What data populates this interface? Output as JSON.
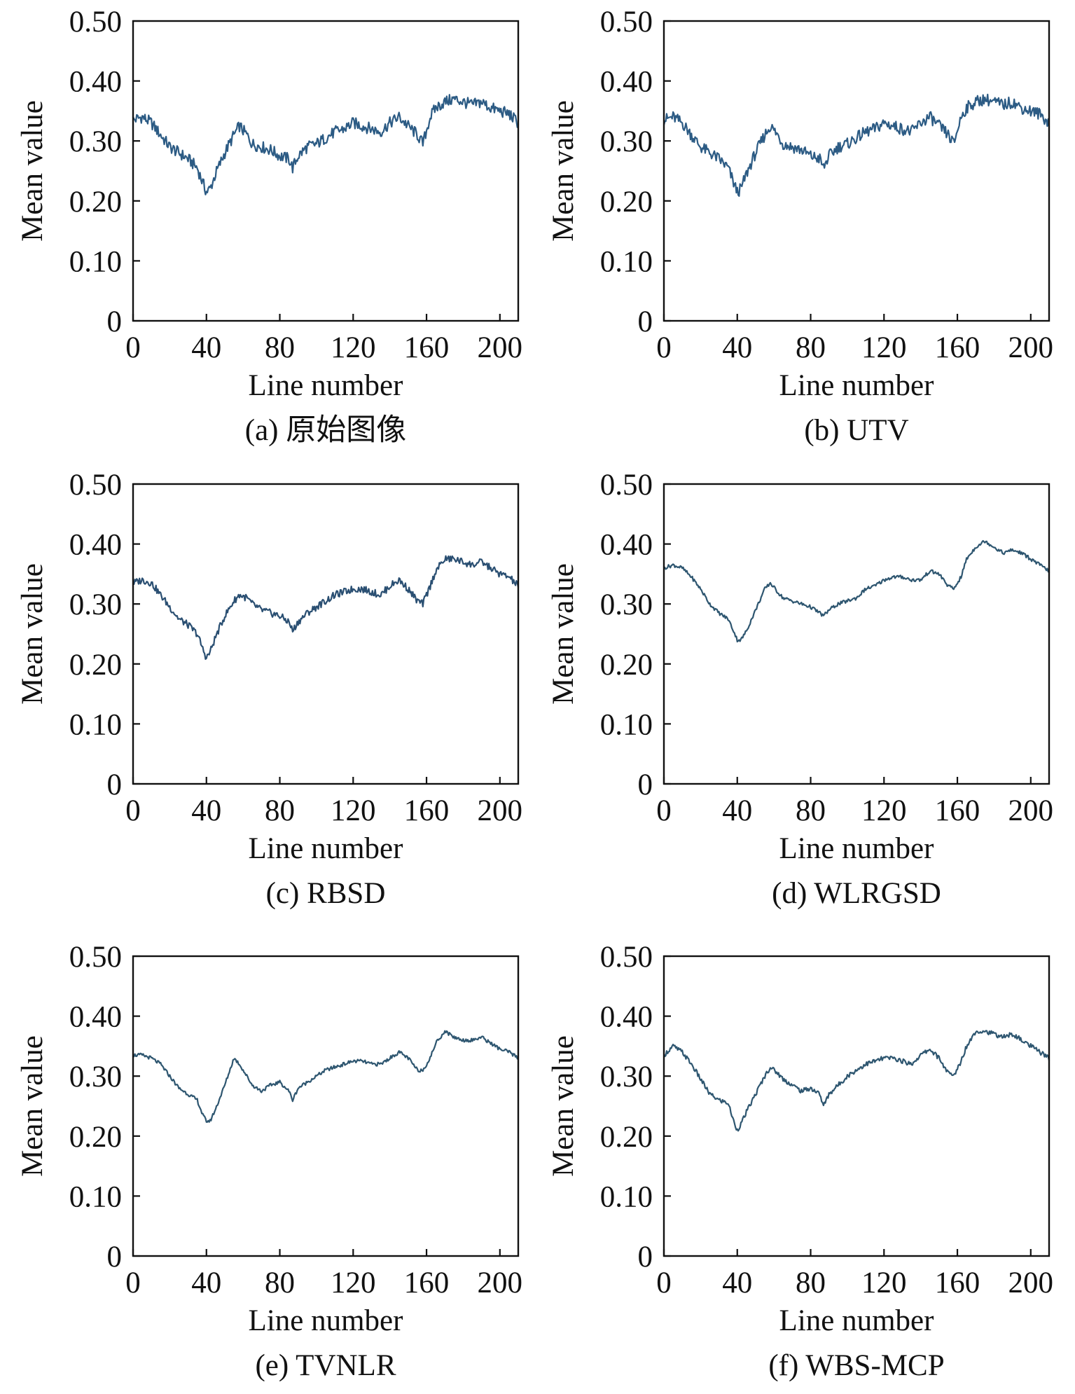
{
  "figure": {
    "panel_count": 6
  },
  "chart_data": [
    {
      "type": "line",
      "caption": "(a) 原始图像",
      "xlabel": "Line number",
      "ylabel": "Mean value",
      "xlim": [
        0,
        210
      ],
      "ylim": [
        0,
        0.5
      ],
      "x_ticks": [
        0,
        40,
        80,
        120,
        160,
        200
      ],
      "x_tick_labels": [
        "0",
        "40",
        "80",
        "120",
        "160",
        "200"
      ],
      "y_ticks": [
        0,
        0.1,
        0.2,
        0.3,
        0.4,
        0.5
      ],
      "y_tick_labels": [
        "0",
        "0.10",
        "0.20",
        "0.30",
        "0.40",
        "0.50"
      ],
      "grid": false,
      "color": "#2c5b84",
      "series": [
        {
          "x": [
            0,
            5,
            10,
            15,
            20,
            25,
            30,
            35,
            38,
            40,
            42,
            45,
            50,
            55,
            58,
            62,
            65,
            70,
            75,
            80,
            85,
            87,
            90,
            95,
            100,
            105,
            110,
            115,
            120,
            125,
            130,
            135,
            140,
            145,
            150,
            155,
            158,
            162,
            165,
            170,
            175,
            180,
            185,
            190,
            195,
            200,
            205,
            210
          ],
          "y": [
            0.335,
            0.34,
            0.33,
            0.31,
            0.29,
            0.28,
            0.27,
            0.255,
            0.23,
            0.215,
            0.22,
            0.245,
            0.28,
            0.31,
            0.325,
            0.31,
            0.295,
            0.29,
            0.285,
            0.275,
            0.27,
            0.255,
            0.275,
            0.29,
            0.295,
            0.305,
            0.315,
            0.32,
            0.33,
            0.325,
            0.32,
            0.315,
            0.33,
            0.34,
            0.325,
            0.31,
            0.295,
            0.34,
            0.355,
            0.365,
            0.37,
            0.365,
            0.36,
            0.365,
            0.355,
            0.35,
            0.345,
            0.33
          ]
        }
      ]
    },
    {
      "type": "line",
      "caption": "(b) UTV",
      "xlabel": "Line number",
      "ylabel": "Mean value",
      "xlim": [
        0,
        210
      ],
      "ylim": [
        0,
        0.5
      ],
      "x_ticks": [
        0,
        40,
        80,
        120,
        160,
        200
      ],
      "x_tick_labels": [
        "0",
        "40",
        "80",
        "120",
        "160",
        "200"
      ],
      "y_ticks": [
        0,
        0.1,
        0.2,
        0.3,
        0.4,
        0.5
      ],
      "y_tick_labels": [
        "0",
        "0.10",
        "0.20",
        "0.30",
        "0.40",
        "0.50"
      ],
      "grid": false,
      "color": "#2c5b84",
      "series": [
        {
          "x": [
            0,
            5,
            10,
            15,
            20,
            25,
            30,
            35,
            38,
            40,
            42,
            45,
            50,
            55,
            58,
            62,
            65,
            70,
            75,
            80,
            85,
            87,
            90,
            95,
            100,
            105,
            110,
            115,
            120,
            125,
            130,
            135,
            140,
            145,
            150,
            155,
            158,
            162,
            165,
            170,
            175,
            180,
            185,
            190,
            195,
            200,
            205,
            210
          ],
          "y": [
            0.335,
            0.34,
            0.33,
            0.31,
            0.29,
            0.28,
            0.27,
            0.255,
            0.23,
            0.215,
            0.22,
            0.245,
            0.28,
            0.31,
            0.325,
            0.31,
            0.295,
            0.29,
            0.285,
            0.275,
            0.27,
            0.255,
            0.275,
            0.29,
            0.295,
            0.305,
            0.315,
            0.32,
            0.33,
            0.325,
            0.32,
            0.315,
            0.33,
            0.34,
            0.325,
            0.31,
            0.295,
            0.34,
            0.355,
            0.365,
            0.37,
            0.365,
            0.36,
            0.365,
            0.355,
            0.35,
            0.345,
            0.33
          ]
        }
      ]
    },
    {
      "type": "line",
      "caption": "(c) RBSD",
      "xlabel": "Line number",
      "ylabel": "Mean value",
      "xlim": [
        0,
        210
      ],
      "ylim": [
        0,
        0.5
      ],
      "x_ticks": [
        0,
        40,
        80,
        120,
        160,
        200
      ],
      "x_tick_labels": [
        "0",
        "40",
        "80",
        "120",
        "160",
        "200"
      ],
      "y_ticks": [
        0,
        0.1,
        0.2,
        0.3,
        0.4,
        0.5
      ],
      "y_tick_labels": [
        "0",
        "0.10",
        "0.20",
        "0.30",
        "0.40",
        "0.50"
      ],
      "grid": false,
      "color": "#2a4f72",
      "series": [
        {
          "x": [
            0,
            5,
            10,
            15,
            20,
            25,
            30,
            35,
            38,
            40,
            42,
            45,
            50,
            55,
            58,
            62,
            65,
            70,
            75,
            80,
            85,
            87,
            90,
            95,
            100,
            105,
            110,
            115,
            120,
            125,
            130,
            135,
            140,
            145,
            150,
            155,
            158,
            162,
            165,
            170,
            175,
            180,
            185,
            190,
            195,
            200,
            205,
            210
          ],
          "y": [
            0.335,
            0.34,
            0.335,
            0.315,
            0.295,
            0.275,
            0.265,
            0.25,
            0.225,
            0.21,
            0.22,
            0.245,
            0.28,
            0.305,
            0.315,
            0.31,
            0.3,
            0.29,
            0.285,
            0.28,
            0.27,
            0.255,
            0.27,
            0.285,
            0.295,
            0.305,
            0.315,
            0.32,
            0.325,
            0.325,
            0.32,
            0.315,
            0.33,
            0.34,
            0.325,
            0.305,
            0.3,
            0.33,
            0.355,
            0.375,
            0.375,
            0.37,
            0.365,
            0.37,
            0.36,
            0.35,
            0.345,
            0.33
          ]
        }
      ]
    },
    {
      "type": "line",
      "caption": "(d) WLRGSD",
      "xlabel": "Line number",
      "ylabel": "Mean value",
      "xlim": [
        0,
        210
      ],
      "ylim": [
        0,
        0.5
      ],
      "x_ticks": [
        0,
        40,
        80,
        120,
        160,
        200
      ],
      "x_tick_labels": [
        "0",
        "40",
        "80",
        "120",
        "160",
        "200"
      ],
      "y_ticks": [
        0,
        0.1,
        0.2,
        0.3,
        0.4,
        0.5
      ],
      "y_tick_labels": [
        "0",
        "0.10",
        "0.20",
        "0.30",
        "0.40",
        "0.50"
      ],
      "grid": false,
      "color": "#2e5670",
      "series": [
        {
          "x": [
            0,
            5,
            10,
            15,
            20,
            25,
            30,
            35,
            38,
            40,
            42,
            45,
            50,
            55,
            58,
            62,
            65,
            70,
            75,
            80,
            85,
            87,
            90,
            95,
            100,
            105,
            110,
            115,
            120,
            125,
            130,
            135,
            140,
            145,
            150,
            155,
            158,
            162,
            165,
            170,
            175,
            180,
            185,
            190,
            195,
            200,
            205,
            210
          ],
          "y": [
            0.36,
            0.365,
            0.36,
            0.345,
            0.325,
            0.3,
            0.285,
            0.275,
            0.255,
            0.24,
            0.24,
            0.255,
            0.29,
            0.325,
            0.335,
            0.32,
            0.31,
            0.305,
            0.3,
            0.295,
            0.285,
            0.28,
            0.29,
            0.3,
            0.305,
            0.31,
            0.325,
            0.33,
            0.34,
            0.345,
            0.345,
            0.34,
            0.34,
            0.355,
            0.35,
            0.33,
            0.325,
            0.345,
            0.375,
            0.395,
            0.405,
            0.395,
            0.385,
            0.39,
            0.385,
            0.375,
            0.365,
            0.355
          ]
        }
      ]
    },
    {
      "type": "line",
      "caption": "(e) TVNLR",
      "xlabel": "Line number",
      "ylabel": "Mean value",
      "xlim": [
        0,
        210
      ],
      "ylim": [
        0,
        0.5
      ],
      "x_ticks": [
        0,
        40,
        80,
        120,
        160,
        200
      ],
      "x_tick_labels": [
        "0",
        "40",
        "80",
        "120",
        "160",
        "200"
      ],
      "y_ticks": [
        0,
        0.1,
        0.2,
        0.3,
        0.4,
        0.5
      ],
      "y_tick_labels": [
        "0",
        "0.10",
        "0.20",
        "0.30",
        "0.40",
        "0.50"
      ],
      "grid": false,
      "color": "#2e5670",
      "series": [
        {
          "x": [
            0,
            5,
            10,
            15,
            20,
            25,
            30,
            35,
            38,
            40,
            42,
            45,
            50,
            55,
            58,
            62,
            65,
            70,
            75,
            80,
            85,
            87,
            90,
            95,
            100,
            105,
            110,
            115,
            120,
            125,
            130,
            135,
            140,
            145,
            150,
            155,
            158,
            162,
            165,
            170,
            175,
            180,
            185,
            190,
            195,
            200,
            205,
            210
          ],
          "y": [
            0.335,
            0.335,
            0.33,
            0.32,
            0.3,
            0.28,
            0.27,
            0.26,
            0.235,
            0.225,
            0.225,
            0.245,
            0.285,
            0.33,
            0.32,
            0.3,
            0.285,
            0.275,
            0.285,
            0.29,
            0.275,
            0.26,
            0.28,
            0.29,
            0.3,
            0.31,
            0.315,
            0.32,
            0.325,
            0.325,
            0.32,
            0.32,
            0.33,
            0.34,
            0.33,
            0.31,
            0.31,
            0.33,
            0.355,
            0.375,
            0.365,
            0.36,
            0.36,
            0.365,
            0.355,
            0.345,
            0.34,
            0.33
          ]
        }
      ]
    },
    {
      "type": "line",
      "caption": "(f) WBS-MCP",
      "xlabel": "Line number",
      "ylabel": "Mean value",
      "xlim": [
        0,
        210
      ],
      "ylim": [
        0,
        0.5
      ],
      "x_ticks": [
        0,
        40,
        80,
        120,
        160,
        200
      ],
      "x_tick_labels": [
        "0",
        "40",
        "80",
        "120",
        "160",
        "200"
      ],
      "y_ticks": [
        0,
        0.1,
        0.2,
        0.3,
        0.4,
        0.5
      ],
      "y_tick_labels": [
        "0",
        "0.10",
        "0.20",
        "0.30",
        "0.40",
        "0.50"
      ],
      "grid": false,
      "color": "#2e5670",
      "series": [
        {
          "x": [
            0,
            5,
            10,
            15,
            20,
            25,
            30,
            35,
            38,
            40,
            42,
            45,
            50,
            55,
            58,
            62,
            65,
            70,
            75,
            80,
            85,
            87,
            90,
            95,
            100,
            105,
            110,
            115,
            120,
            125,
            130,
            135,
            140,
            145,
            150,
            155,
            158,
            162,
            165,
            170,
            175,
            180,
            185,
            190,
            195,
            200,
            205,
            210
          ],
          "y": [
            0.335,
            0.35,
            0.34,
            0.32,
            0.295,
            0.27,
            0.26,
            0.255,
            0.225,
            0.21,
            0.22,
            0.24,
            0.27,
            0.3,
            0.315,
            0.305,
            0.295,
            0.285,
            0.275,
            0.28,
            0.27,
            0.25,
            0.27,
            0.285,
            0.3,
            0.31,
            0.32,
            0.325,
            0.33,
            0.33,
            0.325,
            0.32,
            0.335,
            0.345,
            0.33,
            0.305,
            0.3,
            0.325,
            0.35,
            0.375,
            0.375,
            0.37,
            0.365,
            0.37,
            0.36,
            0.35,
            0.34,
            0.33
          ]
        }
      ]
    }
  ]
}
